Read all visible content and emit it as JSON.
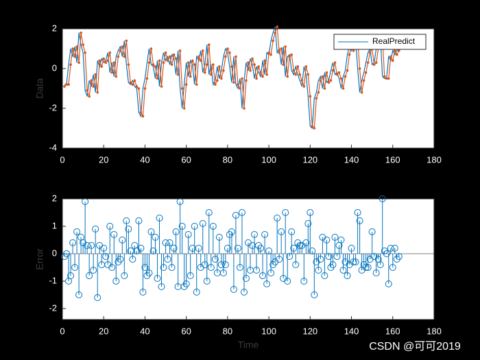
{
  "chart_data": [
    {
      "type": "line",
      "ylabel": "Data",
      "xlim": [
        0,
        180
      ],
      "xticks": [
        0,
        20,
        40,
        60,
        80,
        100,
        120,
        140,
        160,
        180
      ],
      "ylim": [
        -4,
        2
      ],
      "yticks": [
        -4,
        -2,
        0,
        2
      ],
      "legend": "northeast",
      "x": [
        1,
        2,
        3,
        4,
        5,
        6,
        7,
        8,
        9,
        10,
        11,
        12,
        13,
        14,
        15,
        16,
        17,
        18,
        19,
        20,
        21,
        22,
        23,
        24,
        25,
        26,
        27,
        28,
        29,
        30,
        31,
        32,
        33,
        34,
        35,
        36,
        37,
        38,
        39,
        40,
        41,
        42,
        43,
        44,
        45,
        46,
        47,
        48,
        49,
        50,
        51,
        52,
        53,
        54,
        55,
        56,
        57,
        58,
        59,
        60,
        61,
        62,
        63,
        64,
        65,
        66,
        67,
        68,
        69,
        70,
        71,
        72,
        73,
        74,
        75,
        76,
        77,
        78,
        79,
        80,
        81,
        82,
        83,
        84,
        85,
        86,
        87,
        88,
        89,
        90,
        91,
        92,
        93,
        94,
        95,
        96,
        97,
        98,
        99,
        100,
        101,
        102,
        103,
        104,
        105,
        106,
        107,
        108,
        109,
        110,
        111,
        112,
        113,
        114,
        115,
        116,
        117,
        118,
        119,
        120,
        121,
        122,
        123,
        124,
        125,
        126,
        127,
        128,
        129,
        130,
        131,
        132,
        133,
        134,
        135,
        136,
        137,
        138,
        139,
        140,
        141,
        142,
        143,
        144,
        145,
        146,
        147,
        148,
        149,
        150,
        151,
        152,
        153,
        154,
        155,
        156,
        157,
        158,
        159,
        160,
        161,
        162,
        163
      ],
      "series": [
        {
          "name": "RealPredict",
          "color": "#0072bd",
          "values": [
            -0.8,
            -0.8,
            0.2,
            1.0,
            0.6,
            1.1,
            0.3,
            1.8,
            1.2,
            0.8,
            -1.1,
            -1.4,
            -0.6,
            -0.9,
            -0.3,
            -1.2,
            0.4,
            0.1,
            0.5,
            0.3,
            0.4,
            0.8,
            -0.2,
            0.3,
            -0.4,
            0.6,
            0.9,
            1.1,
            0.6,
            1.4,
            0.2,
            -0.7,
            -0.8,
            -0.6,
            -0.9,
            -1.0,
            -2.2,
            -2.4,
            -1.0,
            -0.5,
            0.3,
            1.0,
            0.2,
            0.1,
            -0.5,
            0.4,
            -0.9,
            0.3,
            0.8,
            0.4,
            0.6,
            0.2,
            0.7,
            0.5,
            -0.3,
            0.9,
            -1.0,
            -2.0,
            -0.8,
            0.3,
            -0.4,
            0.4,
            0.2,
            -0.8,
            0.6,
            0.4,
            0.9,
            -0.2,
            0.2,
            1.2,
            -0.3,
            0.2,
            -0.8,
            -0.6,
            0.1,
            -0.5,
            -0.1,
            0.6,
            1.0,
            0.8,
            0.1,
            -0.7,
            0.6,
            -0.8,
            -1.0,
            -0.5,
            -2.0,
            -0.6,
            0.3,
            -0.1,
            0.5,
            0.2,
            -0.5,
            0.1,
            -0.2,
            -0.4,
            0.4,
            -0.3,
            0.8,
            0.7,
            1.4,
            1.8,
            2.1,
            0.8,
            1.0,
            0.2,
            1.1,
            -0.4,
            0.6,
            0.7,
            -0.1,
            -0.3,
            0.1,
            -0.3,
            -0.6,
            -0.9,
            0.1,
            -0.3,
            -1.4,
            -2.9,
            -3.0,
            -1.5,
            -1.2,
            -0.6,
            -0.4,
            -1.0,
            -0.2,
            -0.7,
            -0.6,
            -0.1,
            0.3,
            -0.3,
            -0.2,
            -0.5,
            -1.0,
            -0.4,
            -0.1,
            0.7,
            1.1,
            0.9,
            1.2,
            1.5,
            0.0,
            -1.2,
            -0.6,
            -0.2,
            0.3,
            0.8,
            1.0,
            0.2,
            0.3,
            1.0,
            1.2,
            1.6,
            -0.4,
            -0.5,
            -0.5,
            0.6,
            0.4,
            0.9,
            0.7,
            0.9,
            1.0
          ]
        },
        {
          "color": "#d95319",
          "values": [
            -0.9,
            -0.8,
            -0.8,
            0.2,
            1.0,
            0.6,
            1.1,
            0.3,
            1.8,
            1.2,
            0.8,
            -1.1,
            -1.4,
            -0.6,
            -0.9,
            -0.3,
            -1.2,
            0.4,
            0.1,
            0.5,
            0.3,
            0.4,
            0.8,
            -0.2,
            0.3,
            -0.4,
            0.6,
            0.9,
            1.1,
            0.6,
            1.4,
            0.2,
            -0.7,
            -0.8,
            -0.6,
            -0.9,
            -1.0,
            -2.2,
            -2.4,
            -1.0,
            -0.5,
            0.3,
            1.0,
            0.2,
            0.1,
            -0.5,
            0.4,
            -0.9,
            0.3,
            0.8,
            0.4,
            0.6,
            0.2,
            0.7,
            0.5,
            -0.3,
            0.9,
            -1.0,
            -2.0,
            -0.8,
            0.3,
            -0.4,
            0.4,
            0.2,
            -0.8,
            0.6,
            0.4,
            0.9,
            -0.2,
            0.2,
            1.2,
            -0.3,
            0.2,
            -0.8,
            -0.6,
            0.1,
            -0.5,
            -0.1,
            0.6,
            1.0,
            0.8,
            0.1,
            -0.7,
            0.6,
            -0.8,
            -1.0,
            -0.5,
            -2.0,
            -0.6,
            0.3,
            -0.1,
            0.5,
            0.2,
            -0.5,
            0.1,
            -0.2,
            -0.4,
            0.4,
            -0.3,
            0.8,
            0.7,
            1.4,
            1.8,
            2.1,
            0.8,
            1.0,
            0.2,
            1.1,
            -0.4,
            0.6,
            0.7,
            -0.1,
            -0.3,
            0.1,
            -0.3,
            -0.6,
            -0.9,
            0.1,
            -0.3,
            -1.4,
            -2.9,
            -3.0,
            -1.5,
            -1.2,
            -0.6,
            -0.4,
            -1.0,
            -0.2,
            -0.7,
            -0.6,
            -0.1,
            0.3,
            -0.3,
            -0.2,
            -0.5,
            -1.0,
            -0.4,
            -0.1,
            0.7,
            1.1,
            0.9,
            1.2,
            1.5,
            0.0,
            -1.2,
            -0.6,
            -0.2,
            0.3,
            0.8,
            1.0,
            0.2,
            0.3,
            1.0,
            1.2,
            1.6,
            -0.4,
            -0.5,
            -0.5,
            0.6,
            0.4,
            0.9,
            0.7,
            0.9
          ],
          "markers": true
        }
      ]
    },
    {
      "type": "stem",
      "ylabel": "Error",
      "xlabel": "Time",
      "xlim": [
        0,
        180
      ],
      "xticks": [
        0,
        20,
        40,
        60,
        80,
        100,
        120,
        140,
        160,
        180
      ],
      "ylim": [
        -2.4,
        2
      ],
      "yticks": [
        -2,
        -1,
        0,
        1,
        2
      ],
      "x": [
        1,
        2,
        3,
        4,
        5,
        6,
        7,
        8,
        9,
        10,
        11,
        12,
        13,
        14,
        15,
        16,
        17,
        18,
        19,
        20,
        21,
        22,
        23,
        24,
        25,
        26,
        27,
        28,
        29,
        30,
        31,
        32,
        33,
        34,
        35,
        36,
        37,
        38,
        39,
        40,
        41,
        42,
        43,
        44,
        45,
        46,
        47,
        48,
        49,
        50,
        51,
        52,
        53,
        54,
        55,
        56,
        57,
        58,
        59,
        60,
        61,
        62,
        63,
        64,
        65,
        66,
        67,
        68,
        69,
        70,
        71,
        72,
        73,
        74,
        75,
        76,
        77,
        78,
        79,
        80,
        81,
        82,
        83,
        84,
        85,
        86,
        87,
        88,
        89,
        90,
        91,
        92,
        93,
        94,
        95,
        96,
        97,
        98,
        99,
        100,
        101,
        102,
        103,
        104,
        105,
        106,
        107,
        108,
        109,
        110,
        111,
        112,
        113,
        114,
        115,
        116,
        117,
        118,
        119,
        120,
        121,
        122,
        123,
        124,
        125,
        126,
        127,
        128,
        129,
        130,
        131,
        132,
        133,
        134,
        135,
        136,
        137,
        138,
        139,
        140,
        141,
        142,
        143,
        144,
        145,
        146,
        147,
        148,
        149,
        150,
        151,
        152,
        153,
        154,
        155,
        156,
        157,
        158,
        159,
        160,
        161,
        162,
        163
      ],
      "series": [
        {
          "color": "#0072bd",
          "values": [
            -0.1,
            0.0,
            -1.0,
            -0.8,
            0.4,
            -0.5,
            0.8,
            -1.5,
            0.6,
            0.4,
            1.9,
            0.3,
            -0.8,
            0.3,
            -0.6,
            0.9,
            -1.6,
            0.3,
            -0.4,
            0.2,
            -0.1,
            -0.4,
            1.0,
            -0.5,
            0.7,
            -1.0,
            -0.3,
            -0.2,
            0.5,
            -0.8,
            1.2,
            0.9,
            0.1,
            -0.2,
            0.3,
            0.1,
            1.2,
            0.2,
            -1.4,
            -0.5,
            -0.8,
            -0.7,
            0.8,
            0.1,
            0.6,
            -0.9,
            1.3,
            -1.2,
            -0.5,
            0.4,
            -0.2,
            0.4,
            -0.5,
            0.2,
            0.8,
            -1.2,
            1.9,
            1.0,
            -1.2,
            -1.1,
            0.7,
            -0.8,
            0.2,
            1.0,
            -1.4,
            0.2,
            -0.5,
            1.1,
            -0.4,
            -1.0,
            1.5,
            -0.5,
            1.0,
            -0.2,
            -0.7,
            0.6,
            -0.4,
            -0.7,
            -0.4,
            0.2,
            0.7,
            0.8,
            -1.3,
            1.4,
            0.2,
            -0.5,
            1.5,
            -1.4,
            -0.9,
            0.4,
            -0.6,
            0.3,
            0.7,
            -0.6,
            0.3,
            0.2,
            -0.8,
            0.7,
            -1.1,
            0.1,
            -0.7,
            -0.4,
            -0.3,
            1.3,
            -0.2,
            0.8,
            -0.9,
            1.5,
            -1.0,
            -0.1,
            0.8,
            0.2,
            -0.4,
            0.4,
            0.3,
            0.3,
            -1.0,
            0.4,
            1.1,
            1.5,
            0.1,
            -1.5,
            -0.3,
            -0.6,
            -0.2,
            0.6,
            -0.8,
            0.5,
            -0.1,
            -0.5,
            -0.4,
            0.6,
            -0.1,
            0.3,
            0.5,
            -0.6,
            -0.3,
            -0.8,
            -0.4,
            0.2,
            -0.3,
            -0.3,
            1.5,
            1.2,
            -0.6,
            -0.4,
            -0.5,
            -0.5,
            -0.2,
            0.8,
            -0.1,
            -0.7,
            -0.2,
            -0.4,
            2.0,
            0.1,
            0.0,
            -1.1,
            0.2,
            -0.5,
            0.2,
            -0.2,
            -0.1
          ]
        }
      ]
    }
  ],
  "watermark": "CSDN @可可2019"
}
